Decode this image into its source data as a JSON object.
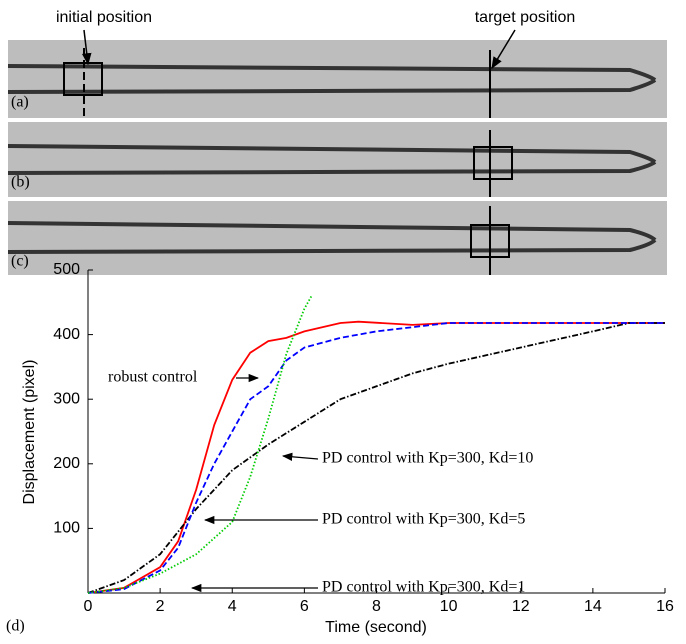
{
  "chart_data": {
    "type": "line",
    "image_labels": [
      "initial position",
      "target position"
    ],
    "panel_labels": [
      "(a)",
      "(b)",
      "(c)",
      "(d)"
    ],
    "xlabel": "Time (second)",
    "ylabel": "Displacement (pixel)",
    "xlim": [
      0,
      16
    ],
    "xticks": [
      0,
      2,
      4,
      6,
      8,
      10,
      12,
      14,
      16
    ],
    "ylim": [
      0,
      500
    ],
    "yticks": [
      100,
      200,
      300,
      400,
      500
    ],
    "grid": false,
    "series": [
      {
        "name": "robust control",
        "color": "#ff0000",
        "style": "solid",
        "x": [
          0,
          1,
          2,
          2.5,
          3,
          3.5,
          4,
          4.5,
          5,
          5.5,
          6,
          7,
          7.5,
          9,
          10,
          12,
          14,
          16
        ],
        "values": [
          0,
          8,
          40,
          80,
          160,
          260,
          330,
          372,
          390,
          395,
          405,
          418,
          420,
          415,
          418,
          418,
          418,
          418
        ]
      },
      {
        "name": "PD control with Kp=300, Kd=10",
        "color": "#000000",
        "style": "dashdot",
        "x": [
          0,
          1,
          2,
          3,
          4,
          5,
          6,
          7,
          8,
          9,
          10,
          12,
          14,
          15,
          16
        ],
        "values": [
          0,
          20,
          60,
          130,
          190,
          230,
          265,
          300,
          320,
          340,
          355,
          380,
          405,
          418,
          418
        ]
      },
      {
        "name": "PD control with Kp=300, Kd=5",
        "color": "#0000ff",
        "style": "dashed",
        "x": [
          0,
          1,
          2,
          2.5,
          3,
          3.5,
          4,
          4.5,
          5,
          5.5,
          6,
          7,
          8,
          10,
          12,
          16
        ],
        "values": [
          0,
          6,
          35,
          70,
          140,
          200,
          250,
          300,
          320,
          360,
          380,
          395,
          405,
          418,
          418,
          418
        ]
      },
      {
        "name": "PD control with Kp=300, Kd=1",
        "color": "#00cc00",
        "style": "dotted",
        "x": [
          0,
          1,
          2,
          3,
          4,
          4.5,
          5,
          5.5,
          6,
          6.2
        ],
        "values": [
          0,
          8,
          30,
          60,
          110,
          180,
          270,
          370,
          440,
          460
        ]
      }
    ]
  }
}
